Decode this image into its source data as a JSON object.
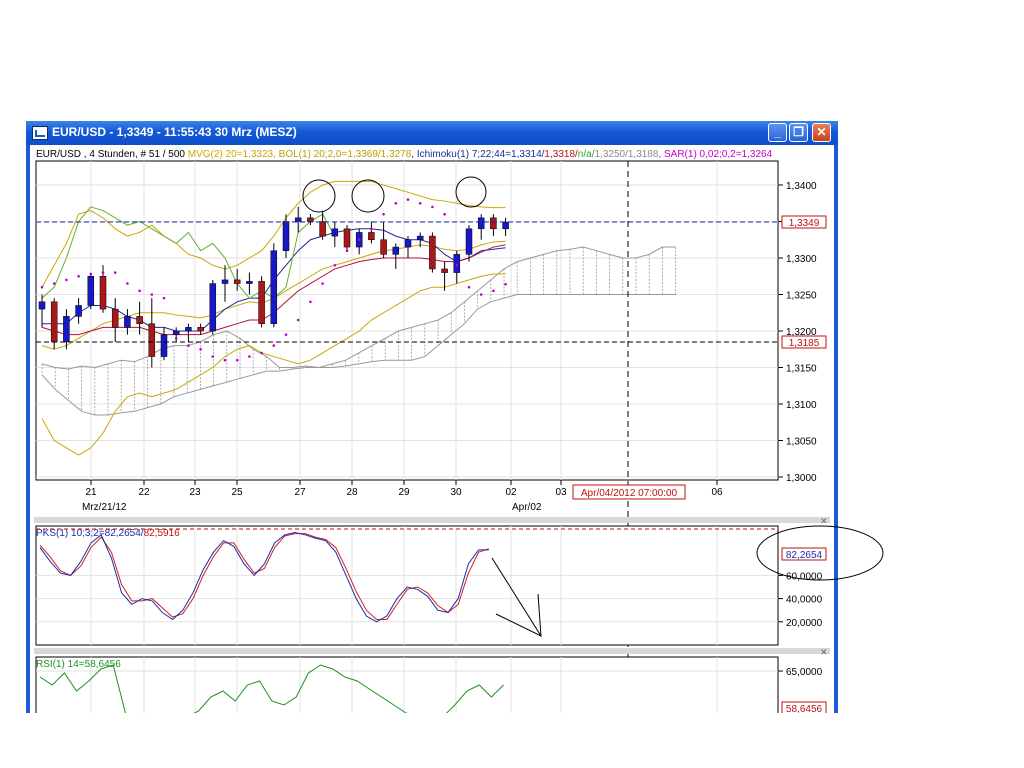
{
  "window": {
    "title": "EUR/USD - 1,3349 - 11:55:43  30 Mrz (MESZ)",
    "controls": {
      "minimize": "_",
      "maximize": "❐",
      "close": "✕"
    }
  },
  "main_panel": {
    "info": {
      "symbol": "EUR/USD",
      "interval": " , 4 Stunden, # 51 / 500",
      "mvg": " MVG(2) 20=1,3323",
      "bol": ", BOL(1) 20;2,0=1,3369/1,3278",
      "ichimoku": ", Ichimoku(1) 7;22;44=1,3314/",
      "ichimoku_red": "1,3318/",
      "ichimoku_green": "n/a/",
      "ichimoku_gray": "1,3250/1,3188",
      "sar": ", SAR(1) 0,02;0,2=1,3264"
    },
    "y_ticks": [
      "1,3400",
      "1,3350",
      "1,3300",
      "1,3250",
      "1,3200",
      "1,3150",
      "1,3100",
      "1,3050",
      "1,3000"
    ],
    "x_ticks": [
      "21",
      "22",
      "23",
      "25",
      "27",
      "28",
      "29",
      "30",
      "02",
      "03",
      "06"
    ],
    "x_sub_labels": [
      "Mrz/21/12",
      "Apr/02"
    ],
    "last_price_label": "1,3349",
    "hline_label": "1,3185",
    "crosshair_label": "Apr/04/2012 07:00:00",
    "colors": {
      "up": "#1818c8",
      "down": "#a81818",
      "ma": "#c8a800",
      "boll": "#60b030",
      "tenkan": "#1a2a9a",
      "kijun": "#b01040",
      "cloud": "#999999",
      "sar": "#c000c8"
    }
  },
  "pks_panel": {
    "label": "PKS(1) 10;3;2=82,2654/",
    "label_red": "82,5916",
    "y_ticks": [
      "60,0000",
      "40,0000",
      "20,0000"
    ],
    "value_label": "82,2654"
  },
  "rsi_panel": {
    "label": "RSI(1) 14=58,6456",
    "y_ticks": [
      "65,0000"
    ],
    "value_label": "58,6456"
  }
}
